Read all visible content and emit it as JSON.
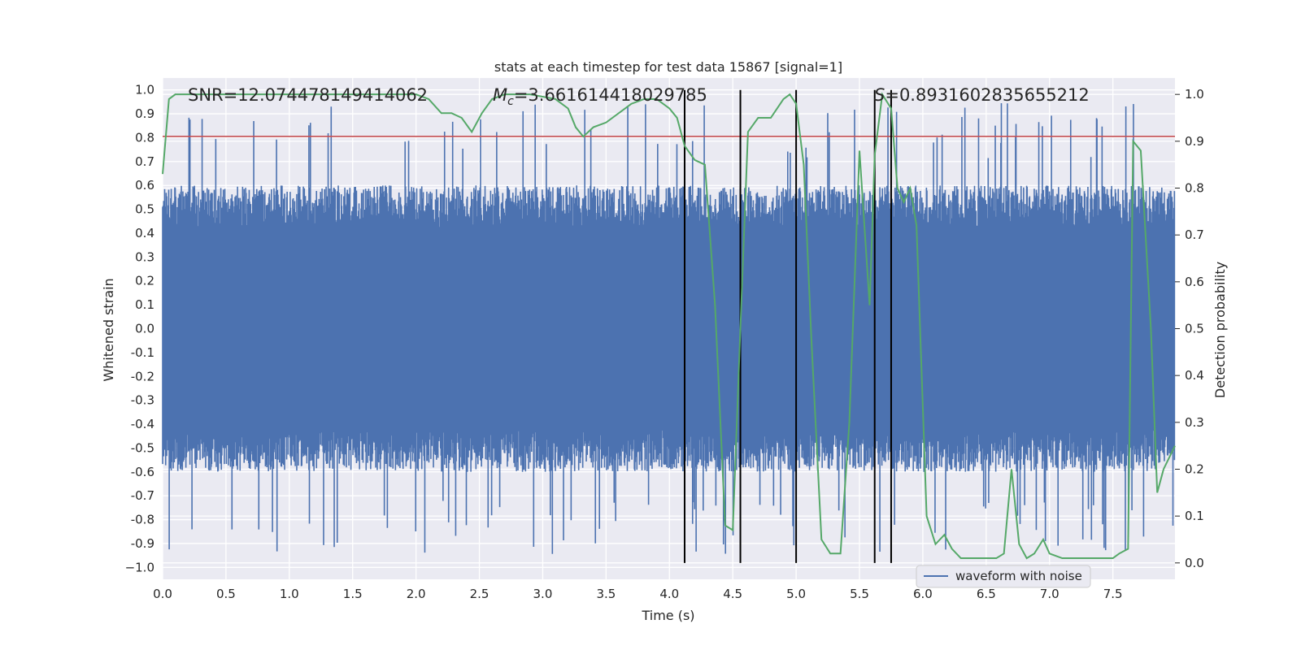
{
  "chart_data": {
    "type": "line",
    "title": "stats at each timestep for test data 15867 [signal=1]",
    "xlabel": "Time (s)",
    "ylabel": "Whitened strain",
    "y2label": "Detection probability",
    "xlim": [
      0.0,
      7.99
    ],
    "ylim": [
      -1.05,
      1.05
    ],
    "y2lim": [
      -0.035,
      1.035
    ],
    "xticks": [
      "0.0",
      "0.5",
      "1.0",
      "1.5",
      "2.0",
      "2.5",
      "3.0",
      "3.5",
      "4.0",
      "4.5",
      "5.0",
      "5.5",
      "6.0",
      "6.5",
      "7.0",
      "7.5"
    ],
    "yticks": [
      "1.0",
      "0.9",
      "0.8",
      "0.7",
      "0.6",
      "0.5",
      "0.4",
      "0.3",
      "0.2",
      "0.1",
      "0.0",
      "-0.1",
      "-0.2",
      "-0.3",
      "-0.4",
      "-0.5",
      "-0.6",
      "-0.7",
      "-0.8",
      "-0.9",
      "−1.0"
    ],
    "y2ticks": [
      "1.0",
      "0.9",
      "0.8",
      "0.7",
      "0.6",
      "0.5",
      "0.4",
      "0.3",
      "0.2",
      "0.1",
      "0.0"
    ],
    "annotations": {
      "snr": "SNR=12.074478149414062",
      "mc_symbol": "M",
      "mc_sub": "c",
      "mc_value": "=3.661614418029785",
      "s_symbol": "S",
      "s_value": "=0.8931602835655212"
    },
    "legend": {
      "label": "waveform with noise",
      "position": "lower-right"
    },
    "threshold": 0.805,
    "threshold_color": "#c44e52",
    "vlines": [
      4.12,
      4.56,
      5.0,
      5.62,
      5.75
    ],
    "waveform": {
      "name": "waveform with noise",
      "color": "#4c72b0",
      "typical_amplitude": 0.5,
      "max_amplitude": 0.95,
      "noise_seed": 15867,
      "samples": 2000
    },
    "series": [
      {
        "name": "Detection probability",
        "color": "#55a868",
        "x": [
          0.0,
          0.05,
          0.1,
          0.2,
          0.4,
          0.6,
          0.8,
          1.0,
          1.2,
          1.4,
          1.6,
          1.8,
          2.0,
          2.1,
          2.2,
          2.28,
          2.36,
          2.44,
          2.52,
          2.6,
          2.7,
          2.9,
          3.1,
          3.2,
          3.26,
          3.32,
          3.4,
          3.5,
          3.6,
          3.7,
          3.8,
          3.9,
          4.0,
          4.06,
          4.12,
          4.2,
          4.28,
          4.36,
          4.44,
          4.5,
          4.56,
          4.62,
          4.7,
          4.8,
          4.9,
          4.95,
          5.0,
          5.06,
          5.12,
          5.2,
          5.27,
          5.35,
          5.42,
          5.5,
          5.58,
          5.62,
          5.68,
          5.75,
          5.8,
          5.85,
          5.9,
          5.95,
          6.03,
          6.1,
          6.17,
          6.23,
          6.3,
          6.4,
          6.5,
          6.58,
          6.64,
          6.7,
          6.76,
          6.82,
          6.88,
          6.95,
          7.0,
          7.1,
          7.2,
          7.3,
          7.4,
          7.5,
          7.55,
          7.62,
          7.66,
          7.72,
          7.8,
          7.85,
          7.9,
          7.99
        ],
        "y": [
          0.83,
          0.99,
          1.0,
          1.0,
          1.0,
          1.0,
          1.0,
          1.0,
          1.0,
          1.0,
          1.0,
          1.0,
          1.0,
          0.99,
          0.96,
          0.96,
          0.95,
          0.92,
          0.96,
          0.99,
          1.0,
          1.0,
          0.99,
          0.97,
          0.93,
          0.91,
          0.93,
          0.94,
          0.96,
          0.98,
          0.99,
          0.99,
          0.97,
          0.95,
          0.89,
          0.86,
          0.85,
          0.55,
          0.08,
          0.07,
          0.5,
          0.92,
          0.95,
          0.95,
          0.99,
          1.0,
          0.98,
          0.85,
          0.48,
          0.05,
          0.02,
          0.02,
          0.3,
          0.88,
          0.55,
          0.87,
          1.0,
          0.97,
          0.8,
          0.77,
          0.8,
          0.72,
          0.1,
          0.04,
          0.06,
          0.03,
          0.01,
          0.01,
          0.01,
          0.01,
          0.02,
          0.2,
          0.04,
          0.01,
          0.02,
          0.05,
          0.02,
          0.01,
          0.01,
          0.01,
          0.01,
          0.01,
          0.02,
          0.03,
          0.9,
          0.88,
          0.5,
          0.15,
          0.2,
          0.25
        ]
      }
    ]
  }
}
